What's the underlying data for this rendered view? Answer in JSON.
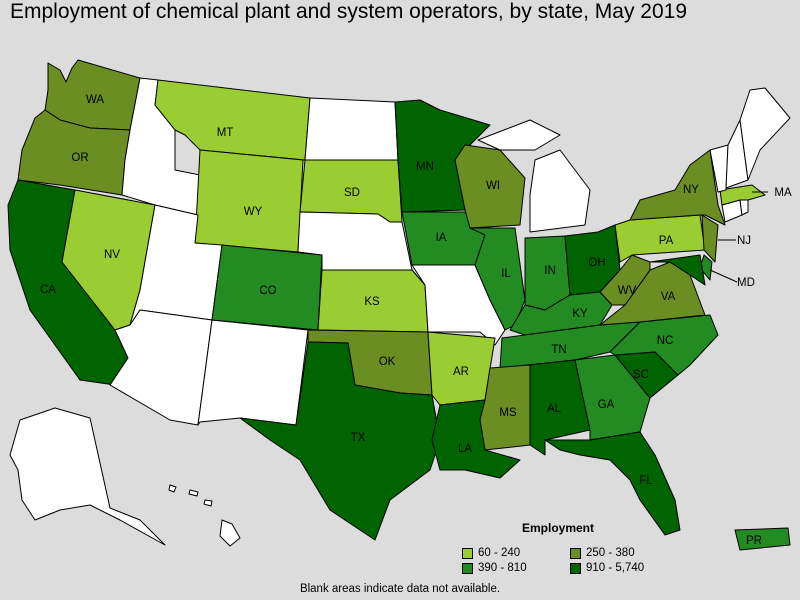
{
  "title": "Employment of chemical plant and system operators, by state, May 2019",
  "note": "Blank areas indicate data not available.",
  "legend": {
    "title": "Employment",
    "items": [
      {
        "label": "60 - 240",
        "color": "#9acd32"
      },
      {
        "label": "250 - 380",
        "color": "#6b8e23"
      },
      {
        "label": "390 - 810",
        "color": "#228b22"
      },
      {
        "label": "910 - 5,740",
        "color": "#006400"
      }
    ]
  },
  "colors": {
    "none": "#ffffff",
    "c1": "#9acd32",
    "c2": "#6b8e23",
    "c3": "#228b22",
    "c4": "#006400",
    "background": "#dcdcdc"
  },
  "states": {
    "WA": {
      "label": "WA",
      "class": "c2"
    },
    "OR": {
      "label": "OR",
      "class": "c2"
    },
    "CA": {
      "label": "CA",
      "class": "c4"
    },
    "NV": {
      "label": "NV",
      "class": "c1"
    },
    "ID": {
      "label": "",
      "class": "none"
    },
    "MT": {
      "label": "MT",
      "class": "c1"
    },
    "WY": {
      "label": "WY",
      "class": "c1"
    },
    "UT": {
      "label": "",
      "class": "none"
    },
    "AZ": {
      "label": "",
      "class": "none"
    },
    "NM": {
      "label": "",
      "class": "none"
    },
    "CO": {
      "label": "CO",
      "class": "c3"
    },
    "ND": {
      "label": "",
      "class": "none"
    },
    "SD": {
      "label": "SD",
      "class": "c1"
    },
    "NE": {
      "label": "",
      "class": "none"
    },
    "KS": {
      "label": "KS",
      "class": "c1"
    },
    "OK": {
      "label": "OK",
      "class": "c2"
    },
    "TX": {
      "label": "TX",
      "class": "c4"
    },
    "MN": {
      "label": "MN",
      "class": "c4"
    },
    "IA": {
      "label": "IA",
      "class": "c3"
    },
    "MO": {
      "label": "",
      "class": "none"
    },
    "AR": {
      "label": "AR",
      "class": "c1"
    },
    "LA": {
      "label": "LA",
      "class": "c4"
    },
    "WI": {
      "label": "WI",
      "class": "c2"
    },
    "IL": {
      "label": "IL",
      "class": "c3"
    },
    "MI": {
      "label": "",
      "class": "none"
    },
    "IN": {
      "label": "IN",
      "class": "c3"
    },
    "OH": {
      "label": "OH",
      "class": "c4"
    },
    "KY": {
      "label": "KY",
      "class": "c3"
    },
    "TN": {
      "label": "TN",
      "class": "c3"
    },
    "MS": {
      "label": "MS",
      "class": "c2"
    },
    "AL": {
      "label": "AL",
      "class": "c4"
    },
    "GA": {
      "label": "GA",
      "class": "c3"
    },
    "FL": {
      "label": "FL",
      "class": "c4"
    },
    "SC": {
      "label": "SC",
      "class": "c4"
    },
    "NC": {
      "label": "NC",
      "class": "c3"
    },
    "VA": {
      "label": "VA",
      "class": "c2"
    },
    "WV": {
      "label": "WV",
      "class": "c2"
    },
    "PA": {
      "label": "PA",
      "class": "c1"
    },
    "NY": {
      "label": "NY",
      "class": "c2"
    },
    "NJ": {
      "label": "NJ",
      "class": "c2"
    },
    "DE": {
      "label": "",
      "class": "c3"
    },
    "MD": {
      "label": "MD",
      "class": "c4"
    },
    "CT": {
      "label": "",
      "class": "none"
    },
    "RI": {
      "label": "",
      "class": "none"
    },
    "MA": {
      "label": "MA",
      "class": "c1"
    },
    "VT": {
      "label": "",
      "class": "none"
    },
    "NH": {
      "label": "",
      "class": "none"
    },
    "ME": {
      "label": "",
      "class": "none"
    },
    "AK": {
      "label": "",
      "class": "none"
    },
    "HI": {
      "label": "",
      "class": "none"
    },
    "PR": {
      "label": "PR",
      "class": "c3"
    }
  }
}
